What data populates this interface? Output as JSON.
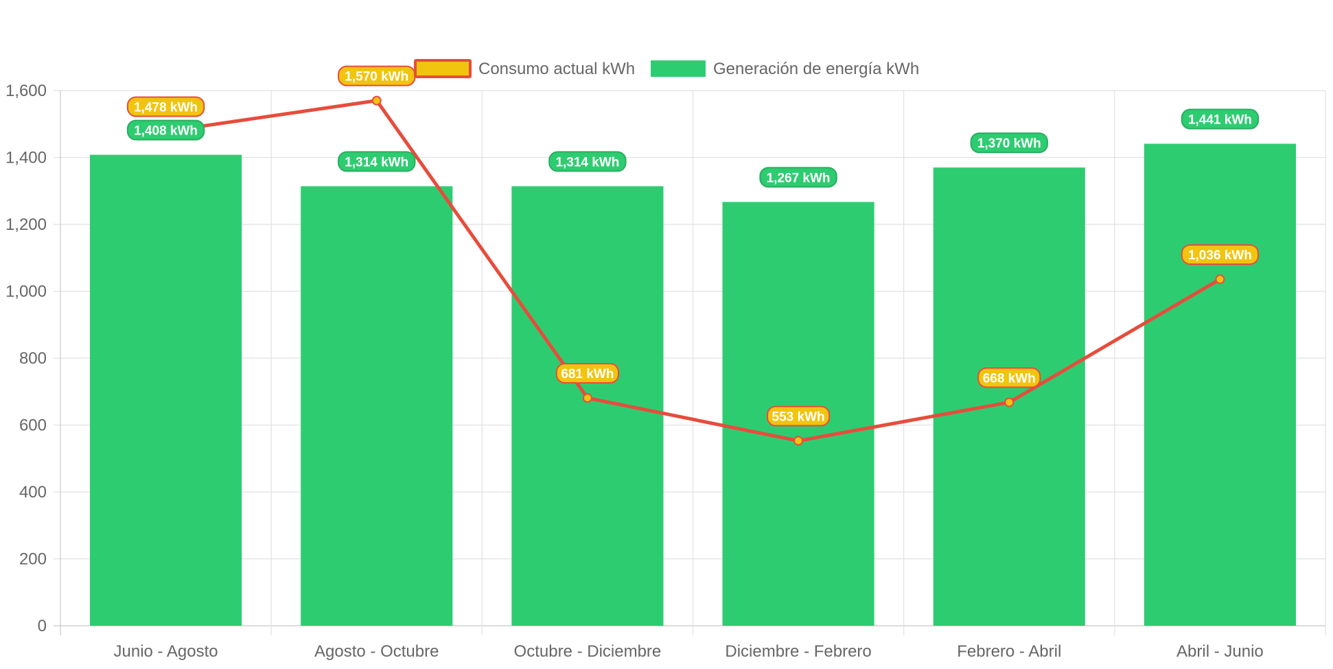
{
  "chart_data": {
    "type": "bar",
    "categories": [
      "Junio - Agosto",
      "Agosto - Octubre",
      "Octubre - Diciembre",
      "Diciembre - Febrero",
      "Febrero - Abril",
      "Abril - Junio"
    ],
    "series": [
      {
        "name": "Consumo actual kWh",
        "type": "line",
        "values": [
          1478,
          1570,
          681,
          553,
          668,
          1036
        ],
        "labels": [
          "1,478 kWh",
          "1,570 kWh",
          "681 kWh",
          "553 kWh",
          "668 kWh",
          "1,036 kWh"
        ],
        "line_color": "#e74c3c",
        "point_color": "#f1c40f"
      },
      {
        "name": "Generación de energía kWh",
        "type": "bar",
        "values": [
          1408,
          1314,
          1314,
          1267,
          1370,
          1441
        ],
        "labels": [
          "1,408 kWh",
          "1,314 kWh",
          "1,314 kWh",
          "1,267 kWh",
          "1,370 kWh",
          "1,441 kWh"
        ],
        "color": "#2ecc71"
      }
    ],
    "ylim": [
      0,
      1600
    ],
    "yticks": [
      "0",
      "200",
      "400",
      "600",
      "800",
      "1,000",
      "1,200",
      "1,400",
      "1,600"
    ],
    "grid": true,
    "legend_position": "top"
  }
}
